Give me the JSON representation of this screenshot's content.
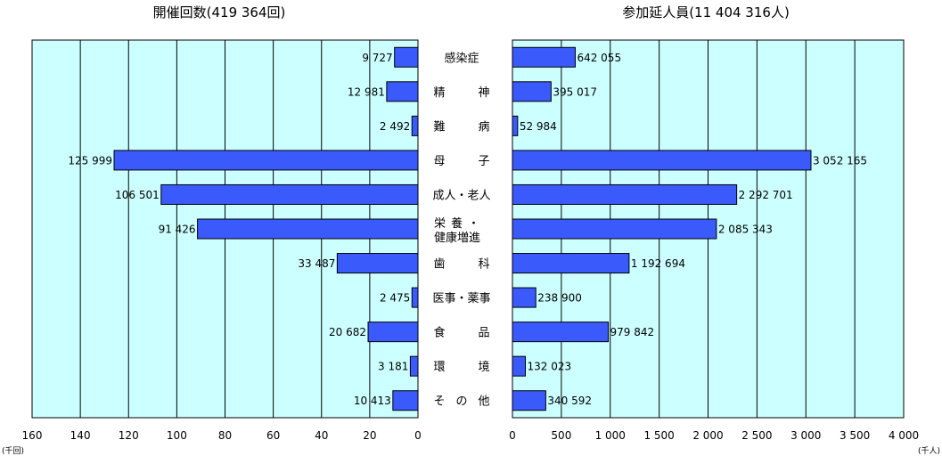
{
  "chart_data": [
    {
      "type": "bar",
      "orientation": "horizontal",
      "direction": "leftward",
      "title": "開催回数(419 364回)",
      "unit": "(千回)",
      "xlim": [
        0,
        160
      ],
      "xticks": [
        "160",
        "140",
        "120",
        "100",
        "80",
        "60",
        "40",
        "20",
        "0"
      ],
      "tick_values": [
        160,
        140,
        120,
        100,
        80,
        60,
        40,
        20,
        0
      ],
      "grid": true,
      "bar_color": "#3A5AFB",
      "plot_background": "#CCFFFF",
      "categories": [
        "感染症",
        "精神",
        "難病",
        "母子",
        "成人・老人",
        "栄養・健康増進",
        "歯科",
        "医事・薬事",
        "食品",
        "環境",
        "その他"
      ],
      "values": [
        9.727,
        12.981,
        2.492,
        125.999,
        106.501,
        91.426,
        33.487,
        2.475,
        20.682,
        3.181,
        10.413
      ],
      "labels": [
        "9 727",
        "12 981",
        "2 492",
        "125 999",
        "106 501",
        "91 426",
        "33 487",
        "2 475",
        "20 682",
        "3 181",
        "10 413"
      ]
    },
    {
      "type": "bar",
      "orientation": "horizontal",
      "direction": "rightward",
      "title": "参加延人員(11 404 316人)",
      "unit": "(千人)",
      "xlim": [
        0,
        4000
      ],
      "xticks": [
        "0",
        "500",
        "1 000",
        "1 500",
        "2 000",
        "2 500",
        "3 000",
        "3 500",
        "4 000"
      ],
      "tick_values": [
        0,
        500,
        1000,
        1500,
        2000,
        2500,
        3000,
        3500,
        4000
      ],
      "grid": true,
      "bar_color": "#3A5AFB",
      "plot_background": "#CCFFFF",
      "categories": [
        "感染症",
        "精神",
        "難病",
        "母子",
        "成人・老人",
        "栄養・健康増進",
        "歯科",
        "医事・薬事",
        "食品",
        "環境",
        "その他"
      ],
      "values": [
        642.055,
        395.017,
        52.984,
        3052.165,
        2292.701,
        2085.343,
        1192.694,
        238.9,
        979.842,
        132.023,
        340.592
      ],
      "labels": [
        "642 055",
        "395 017",
        "52 984",
        "3 052 165",
        "2 292 701",
        "2 085 343",
        "1 192 694",
        "238 900",
        "979 842",
        "132 023",
        "340 592"
      ]
    }
  ],
  "category_labels": [
    [
      "感染症"
    ],
    [
      "精",
      "神"
    ],
    [
      "難",
      "病"
    ],
    [
      "母",
      "子"
    ],
    [
      "成人・老人"
    ],
    [
      "栄養・",
      "健康増進"
    ],
    [
      "歯",
      "科"
    ],
    [
      "医事・薬事"
    ],
    [
      "食",
      "品"
    ],
    [
      "環",
      "境"
    ],
    [
      "そ",
      "の",
      "他"
    ]
  ]
}
